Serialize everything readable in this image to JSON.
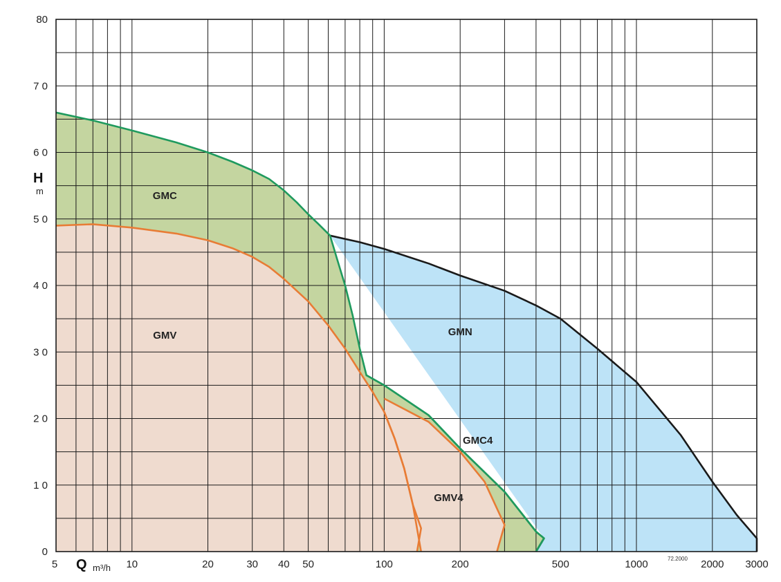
{
  "chart_data": {
    "type": "area",
    "x_scale": "log",
    "xlim": [
      5,
      3000
    ],
    "ylim": [
      0,
      80
    ],
    "grid": true,
    "x_ticks": [
      5,
      10,
      20,
      30,
      40,
      50,
      100,
      200,
      500,
      1000,
      2000,
      3000
    ],
    "x_minor_gridlines": [
      6,
      7,
      8,
      9,
      60,
      70,
      80,
      90,
      300,
      400,
      600,
      700,
      800,
      900
    ],
    "y_ticks": [
      0,
      10,
      20,
      30,
      40,
      50,
      60,
      70,
      80
    ],
    "y_minor_gridlines": [
      5,
      15,
      25,
      35,
      45,
      55,
      65,
      75
    ],
    "y_tick_labels": [
      "0",
      "1 0",
      "2 0",
      "3 0",
      "4 0",
      "5 0",
      "6 0",
      "7 0",
      "80"
    ],
    "xlabel": {
      "symbol": "Q",
      "unit": "m³/h"
    },
    "ylabel": {
      "symbol": "H",
      "unit": "m"
    },
    "code_note": "72.2000",
    "series": [
      {
        "name": "GMN",
        "fill": "#bde3f7",
        "stroke": "#1a1a1a",
        "label_at": [
          200,
          32.5
        ],
        "boundary": [
          [
            61,
            47.5
          ],
          [
            80,
            46.5
          ],
          [
            100,
            45.5
          ],
          [
            150,
            43.3
          ],
          [
            200,
            41.5
          ],
          [
            300,
            39.2
          ],
          [
            400,
            37
          ],
          [
            500,
            35
          ],
          [
            700,
            30.5
          ],
          [
            1000,
            25.5
          ],
          [
            1500,
            17.5
          ],
          [
            2000,
            10.5
          ],
          [
            2500,
            5.5
          ],
          [
            3000,
            2
          ],
          [
            3000,
            0
          ],
          [
            400,
            0
          ],
          [
            430,
            2
          ]
        ]
      },
      {
        "name": "GMC",
        "fill": "#c4d5a0",
        "stroke": "#1f9a5e",
        "label_at": [
          13.5,
          53
        ],
        "boundary": [
          [
            5,
            66
          ],
          [
            7,
            64.8
          ],
          [
            10,
            63.3
          ],
          [
            15,
            61.5
          ],
          [
            20,
            60
          ],
          [
            25,
            58.6
          ],
          [
            30,
            57.3
          ],
          [
            35,
            56
          ],
          [
            40,
            54.3
          ],
          [
            45,
            52.5
          ],
          [
            50,
            50.7
          ],
          [
            55,
            49.2
          ],
          [
            61,
            47.5
          ],
          [
            65,
            44
          ],
          [
            70,
            40
          ],
          [
            75,
            35.5
          ],
          [
            80,
            30.5
          ],
          [
            85,
            26.5
          ],
          [
            100,
            25
          ],
          [
            150,
            20.5
          ],
          [
            200,
            15.5
          ],
          [
            300,
            9
          ],
          [
            400,
            3
          ],
          [
            430,
            2
          ],
          [
            400,
            0
          ],
          [
            5,
            0
          ]
        ]
      },
      {
        "name": "GMC4",
        "fill": "#c4d5a0",
        "stroke": "#1f9a5e",
        "label_at": [
          235,
          16.2
        ],
        "boundary": [
          [
            85,
            26.5
          ],
          [
            100,
            25
          ],
          [
            150,
            20.5
          ],
          [
            200,
            15.5
          ],
          [
            300,
            9
          ],
          [
            400,
            3
          ],
          [
            430,
            2
          ],
          [
            400,
            0
          ],
          [
            250,
            0
          ]
        ]
      },
      {
        "name": "GMV",
        "fill": "#efdbcf",
        "stroke": "#e87c35",
        "label_at": [
          13.5,
          32
        ],
        "boundary": [
          [
            5,
            49
          ],
          [
            7,
            49.2
          ],
          [
            10,
            48.7
          ],
          [
            15,
            47.8
          ],
          [
            20,
            46.8
          ],
          [
            25,
            45.6
          ],
          [
            30,
            44.3
          ],
          [
            35,
            42.8
          ],
          [
            40,
            41
          ],
          [
            50,
            37.6
          ],
          [
            60,
            34
          ],
          [
            70,
            30.5
          ],
          [
            80,
            27
          ],
          [
            90,
            24
          ],
          [
            100,
            21
          ],
          [
            110,
            17
          ],
          [
            120,
            12.5
          ],
          [
            130,
            7
          ],
          [
            140,
            3.5
          ],
          [
            135,
            0
          ],
          [
            5,
            0
          ]
        ]
      },
      {
        "name": "GMV4",
        "fill": "#efdbcf",
        "stroke": "#e87c35",
        "label_at": [
          180,
          7.6
        ],
        "boundary": [
          [
            100,
            23
          ],
          [
            150,
            19.5
          ],
          [
            200,
            15
          ],
          [
            250,
            10.5
          ],
          [
            300,
            4
          ],
          [
            280,
            0
          ],
          [
            140,
            0
          ],
          [
            130,
            7
          ],
          [
            120,
            12.5
          ],
          [
            110,
            17
          ],
          [
            100,
            21
          ]
        ]
      }
    ]
  }
}
